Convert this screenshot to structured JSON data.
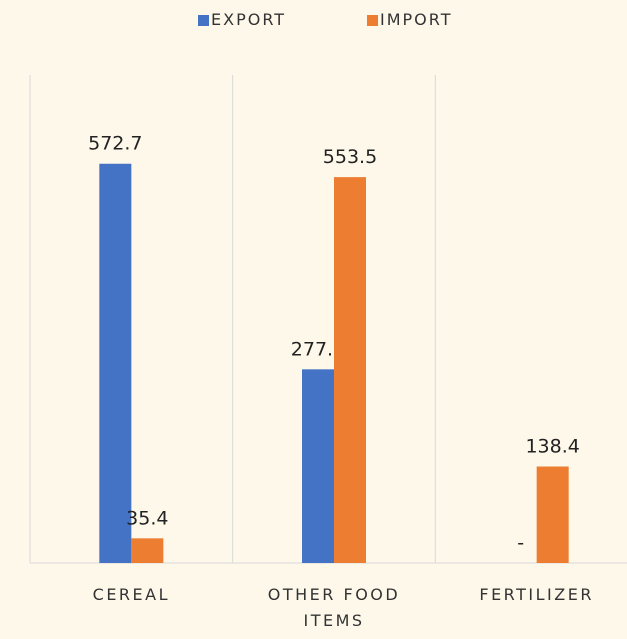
{
  "chart_data": {
    "type": "bar",
    "categories": [
      "CEREAL",
      "OTHER FOOD ITEMS",
      "FERTILIZER"
    ],
    "series": [
      {
        "name": "EXPORT",
        "color": "#4472c4",
        "values": [
          572.7,
          277.8,
          0
        ],
        "value_labels": [
          "572.7",
          "277.8",
          "-"
        ]
      },
      {
        "name": "IMPORT",
        "color": "#ed7d31",
        "values": [
          35.4,
          553.5,
          138.4
        ],
        "value_labels": [
          "35.4",
          "553.5",
          "138.4"
        ]
      }
    ],
    "ylim": [
      0,
      700
    ],
    "legend": "top"
  }
}
